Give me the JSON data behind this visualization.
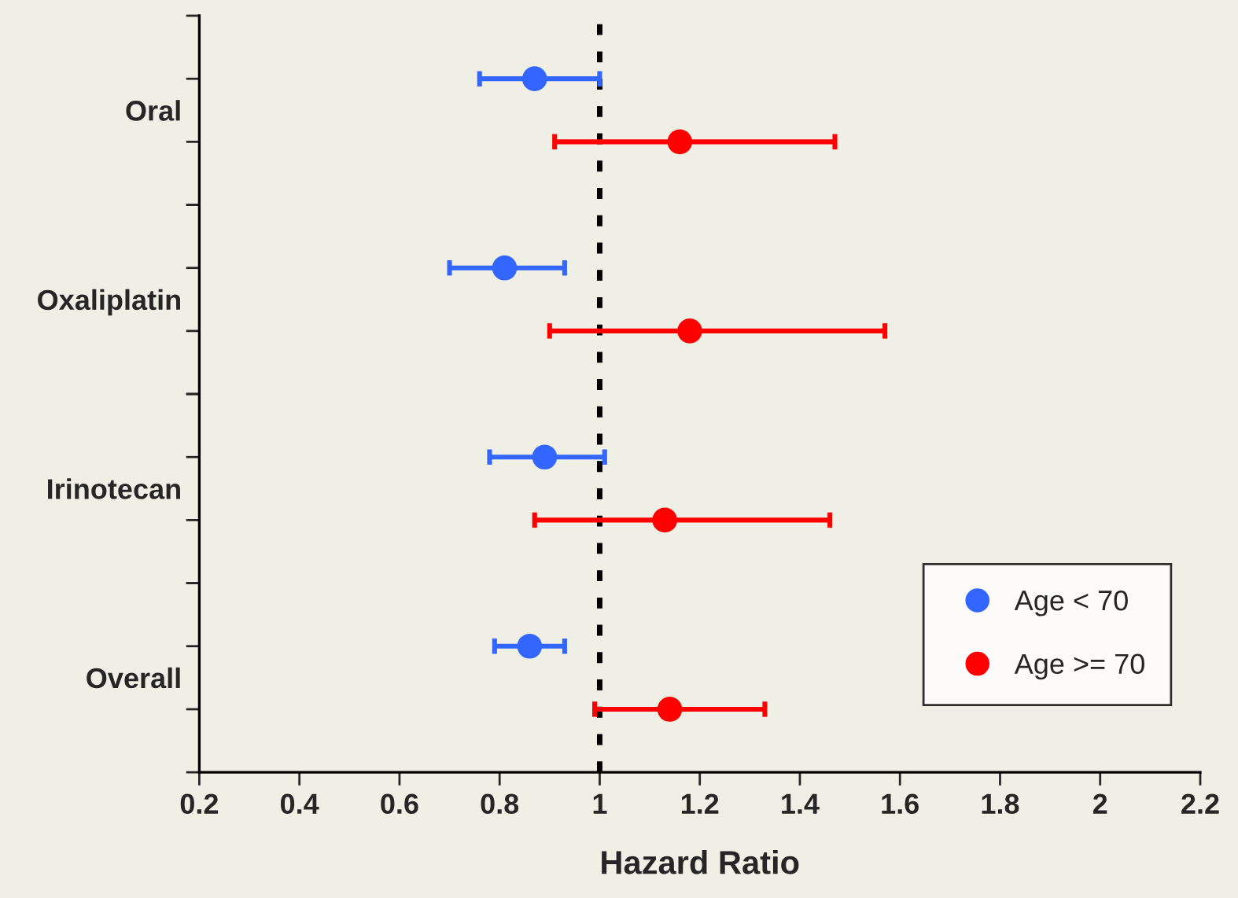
{
  "chart_data": {
    "type": "scatter",
    "orientation": "horizontal",
    "xlabel": "Hazard Ratio",
    "categories": [
      "Oral",
      "Oxaliplatin",
      "Irinotecan",
      "Overall"
    ],
    "series": [
      {
        "name": "Age < 70",
        "color": "#3366ff",
        "values": [
          0.87,
          0.81,
          0.89,
          0.86
        ],
        "errors": [
          [
            0.76,
            1.0
          ],
          [
            0.7,
            0.93
          ],
          [
            0.78,
            1.01
          ],
          [
            0.79,
            0.93
          ]
        ]
      },
      {
        "name": "Age >= 70",
        "color": "#ff0000",
        "values": [
          1.16,
          1.18,
          1.13,
          1.14
        ],
        "errors": [
          [
            0.91,
            1.47
          ],
          [
            0.9,
            1.57
          ],
          [
            0.87,
            1.46
          ],
          [
            0.99,
            1.33
          ]
        ]
      }
    ],
    "xlim": [
      0.2,
      2.2
    ],
    "xticks": [
      0.2,
      0.4,
      0.6,
      0.8,
      1,
      1.2,
      1.4,
      1.6,
      1.8,
      2,
      2.2
    ],
    "ref_lines": [
      {
        "axis": "x",
        "value": 1,
        "color": "#000000",
        "line_style": "dotted"
      }
    ],
    "legend": "bottom right",
    "marker": "circle",
    "grid": false
  }
}
